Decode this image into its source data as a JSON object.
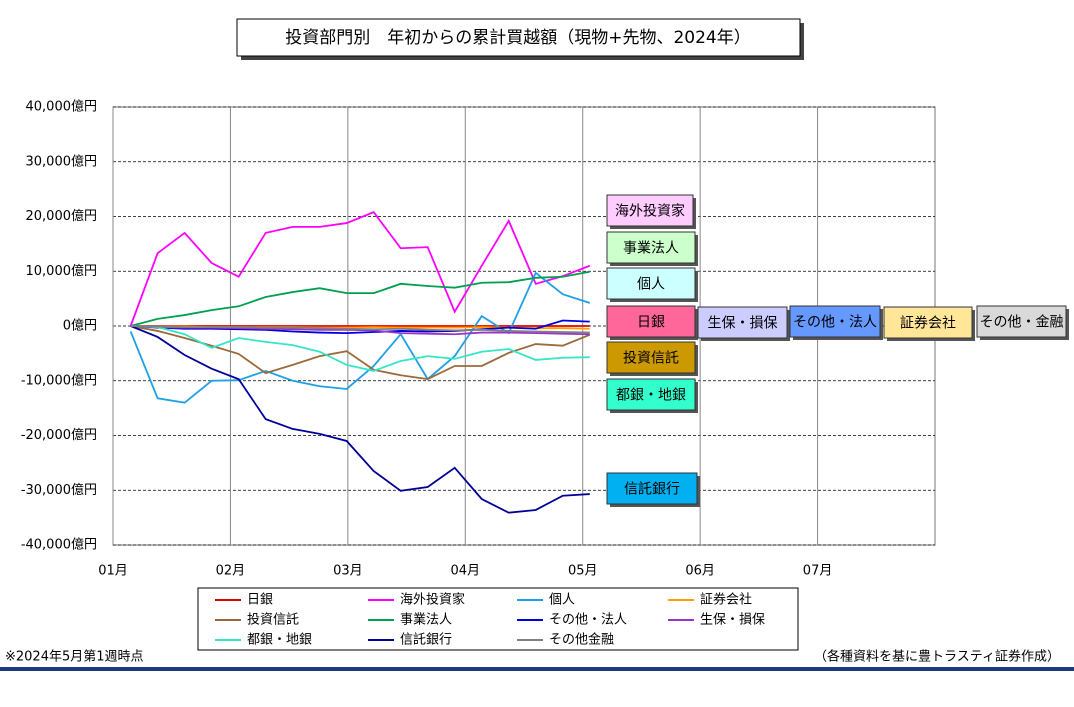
{
  "chart_data": {
    "type": "line",
    "title": "投資部門別　年初からの累計買越額（現物+先物、2024年）",
    "footnote": "※2024年5月第1週時点",
    "source": "（各種資料を基に豊トラスティ証券作成）",
    "xlim": [
      0,
      7
    ],
    "xticks": [
      {
        "value": 0,
        "label": "01月"
      },
      {
        "value": 1,
        "label": "02月"
      },
      {
        "value": 2,
        "label": "03月"
      },
      {
        "value": 3,
        "label": "04月"
      },
      {
        "value": 4,
        "label": "05月"
      },
      {
        "value": 5,
        "label": "06月"
      },
      {
        "value": 6,
        "label": "07月"
      }
    ],
    "ylim": [
      -40000,
      40000
    ],
    "yticks": [
      {
        "value": -40000,
        "label": "-40,000億円"
      },
      {
        "value": -30000,
        "label": "-30,000億円"
      },
      {
        "value": -20000,
        "label": "-20,000億円"
      },
      {
        "value": -10000,
        "label": "-10,000億円"
      },
      {
        "value": 0,
        "label": "0億円"
      },
      {
        "value": 10000,
        "label": "10,000億円"
      },
      {
        "value": 20000,
        "label": "20,000億円"
      },
      {
        "value": 30000,
        "label": "30,000億円"
      },
      {
        "value": 40000,
        "label": "40,000億円"
      }
    ],
    "grid": true,
    "x": [
      0.15,
      0.38,
      0.61,
      0.84,
      1.07,
      1.3,
      1.53,
      1.76,
      1.99,
      2.22,
      2.45,
      2.68,
      2.91,
      3.14,
      3.37,
      3.6,
      3.83,
      4.06
    ],
    "series": [
      {
        "name": "日銀",
        "color": "#e00000",
        "values": [
          0,
          0,
          0,
          0,
          0,
          0,
          0,
          0,
          0,
          0,
          0,
          0,
          0,
          0,
          0,
          0,
          0,
          0
        ]
      },
      {
        "name": "海外投資家",
        "color": "#ff00ff",
        "values": [
          0,
          13300,
          17000,
          11500,
          9000,
          17000,
          18100,
          18100,
          18800,
          20800,
          14200,
          14400,
          2600,
          11000,
          19200,
          7700,
          9100,
          11000
        ]
      },
      {
        "name": "個人",
        "color": "#1ea0e6",
        "values": [
          -1000,
          -13200,
          -14000,
          -10000,
          -9900,
          -8200,
          -10000,
          -11000,
          -11500,
          -7300,
          -1500,
          -9700,
          -5500,
          1800,
          -1300,
          9700,
          5800,
          4200
        ]
      },
      {
        "name": "証券会社",
        "color": "#ffa000",
        "values": [
          0,
          -100,
          -100,
          -200,
          -200,
          -200,
          -200,
          -300,
          -300,
          -200,
          -300,
          -300,
          -300,
          -200,
          -300,
          -400,
          -400,
          -500
        ]
      },
      {
        "name": "投資信託",
        "color": "#9a6a3a",
        "values": [
          0,
          -900,
          -2200,
          -3600,
          -5100,
          -8600,
          -7100,
          -5500,
          -4600,
          -8000,
          -9000,
          -9700,
          -7300,
          -7300,
          -4900,
          -3300,
          -3600,
          -1600
        ]
      },
      {
        "name": "事業法人",
        "color": "#00a050",
        "values": [
          0,
          1300,
          2000,
          2900,
          3600,
          5300,
          6200,
          6900,
          6000,
          6000,
          7700,
          7300,
          7000,
          7900,
          8000,
          8800,
          9000,
          9900
        ]
      },
      {
        "name": "その他・法人",
        "color": "#0000dd",
        "values": [
          0,
          -300,
          -500,
          -500,
          -600,
          -700,
          -1000,
          -1200,
          -1300,
          -1100,
          -900,
          -1000,
          -900,
          -600,
          -300,
          -500,
          1000,
          800
        ]
      },
      {
        "name": "生保・損保",
        "color": "#9933cc",
        "values": [
          0,
          -200,
          -300,
          -300,
          -400,
          -500,
          -600,
          -700,
          -700,
          -800,
          -1300,
          -1400,
          -1500,
          -1200,
          -1200,
          -1300,
          -1400,
          -1500
        ]
      },
      {
        "name": "都銀・地銀",
        "color": "#33e6c8",
        "values": [
          0,
          -200,
          -1500,
          -4000,
          -2200,
          -2900,
          -3500,
          -4700,
          -7100,
          -8200,
          -6400,
          -5500,
          -6000,
          -4700,
          -4200,
          -6200,
          -5800,
          -5700
        ]
      },
      {
        "name": "信託銀行",
        "color": "#000099",
        "values": [
          0,
          -2000,
          -5300,
          -7800,
          -9700,
          -17000,
          -18800,
          -19700,
          -21000,
          -26500,
          -30100,
          -29400,
          -25900,
          -31600,
          -34100,
          -33600,
          -31000,
          -30700
        ]
      },
      {
        "name": "その他金融",
        "color": "#808080",
        "values": [
          0,
          -100,
          -200,
          -200,
          -200,
          -300,
          -300,
          -400,
          -500,
          -600,
          -500,
          -700,
          -800,
          -700,
          -900,
          -1000,
          -1100,
          -1200
        ]
      }
    ],
    "annotations": [
      {
        "text": "海外投資家",
        "color": "#ffccff"
      },
      {
        "text": "事業法人",
        "color": "#ccffcc"
      },
      {
        "text": "個人",
        "color": "#ccffff"
      },
      {
        "text": "日銀",
        "color": "#ff6699"
      },
      {
        "text": "生保・損保",
        "color": "#ccccff"
      },
      {
        "text": "その他・法人",
        "color": "#6699ff"
      },
      {
        "text": "証券会社",
        "color": "#ffe699"
      },
      {
        "text": "その他・金融",
        "color": "#d9d9d9"
      },
      {
        "text": "投資信託",
        "color": "#cc9900"
      },
      {
        "text": "都銀・地銀",
        "color": "#33ffcc"
      },
      {
        "text": "信託銀行",
        "color": "#00b0f0"
      }
    ]
  }
}
